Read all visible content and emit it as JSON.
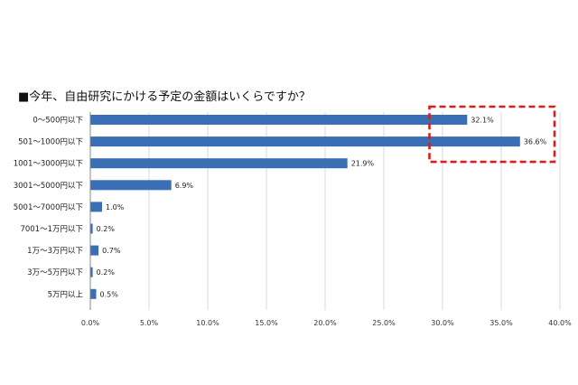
{
  "chart_data": {
    "type": "bar",
    "orientation": "horizontal",
    "title": "■今年、自由研究にかける予定の金額はいくらですか？",
    "categories": [
      "0～500円以下",
      "501～1000円以下",
      "1001～3000円以下",
      "3001～5000円以下",
      "5001～7000円以下",
      "7001～1万円以下",
      "1万～3万円以下",
      "3万～5万円以下",
      "5万円以上"
    ],
    "values": [
      32.1,
      36.6,
      21.9,
      6.9,
      1.0,
      0.2,
      0.7,
      0.2,
      0.5
    ],
    "value_labels": [
      "32.1%",
      "36.6%",
      "21.9%",
      "6.9%",
      "1.0%",
      "0.2%",
      "0.7%",
      "0.2%",
      "0.5%"
    ],
    "xlim": [
      0,
      40
    ],
    "xticks": [
      0,
      5,
      10,
      15,
      20,
      25,
      30,
      35,
      40
    ],
    "xtick_labels": [
      "0.0%",
      "5.0%",
      "10.0%",
      "15.0%",
      "20.0%",
      "25.0%",
      "30.0%",
      "35.0%",
      "40.0%"
    ],
    "grid": "vertical",
    "bar_color": "#3A6EB5",
    "highlight": {
      "style": "dashed-box",
      "color": "#D91E1E",
      "covers_categories": [
        "0～500円以下",
        "501～1000円以下"
      ],
      "x_from": 29.5,
      "x_to": 40
    }
  }
}
